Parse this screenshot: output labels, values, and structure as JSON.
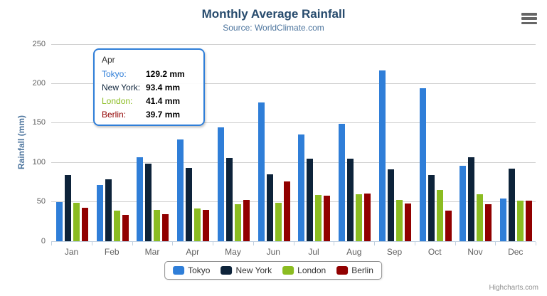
{
  "chart_data": {
    "type": "bar",
    "title": "Monthly Average Rainfall",
    "subtitle": "Source: WorldClimate.com",
    "categories": [
      "Jan",
      "Feb",
      "Mar",
      "Apr",
      "May",
      "Jun",
      "Jul",
      "Aug",
      "Sep",
      "Oct",
      "Nov",
      "Dec"
    ],
    "series": [
      {
        "name": "Tokyo",
        "color": "#2f7ed8",
        "values": [
          49.9,
          71.5,
          106.4,
          129.2,
          144.0,
          176.0,
          135.6,
          148.5,
          216.4,
          194.1,
          95.6,
          54.4
        ]
      },
      {
        "name": "New York",
        "color": "#0d233a",
        "values": [
          83.6,
          78.8,
          98.5,
          93.4,
          106.0,
          84.5,
          105.0,
          104.3,
          91.2,
          83.5,
          106.6,
          92.3
        ]
      },
      {
        "name": "London",
        "color": "#8bbc21",
        "values": [
          48.9,
          38.8,
          39.3,
          41.4,
          47.0,
          48.3,
          59.0,
          59.6,
          52.4,
          65.2,
          59.3,
          51.2
        ]
      },
      {
        "name": "Berlin",
        "color": "#910000",
        "values": [
          42.4,
          33.2,
          34.5,
          39.7,
          52.6,
          75.5,
          57.4,
          60.4,
          47.6,
          39.1,
          46.8,
          51.1
        ]
      }
    ],
    "xlabel": "",
    "ylabel": "Rainfall (mm)",
    "ylim": [
      0,
      250
    ],
    "ytick_step": 50,
    "grid": true,
    "legend_position": "bottom"
  },
  "tooltip": {
    "header": "Apr",
    "rows": [
      {
        "label": "Tokyo:",
        "value": "129.2 mm",
        "color": "#2f7ed8"
      },
      {
        "label": "New York:",
        "value": "93.4 mm",
        "color": "#0d233a"
      },
      {
        "label": "London:",
        "value": "41.4 mm",
        "color": "#8bbc21"
      },
      {
        "label": "Berlin:",
        "value": "39.7 mm",
        "color": "#910000"
      }
    ],
    "border_color": "#2f7ed8"
  },
  "credits": "Highcharts.com",
  "colors": {
    "title": "#274b6d",
    "subtitle": "#4d759e",
    "axis_title": "#4d759e",
    "axis_labels": "#606060",
    "gridline": "#d0d0d0",
    "axis_line": "#c0d0e0",
    "legend_border": "#909090",
    "legend_text": "#333333",
    "credits_text": "#909090",
    "menu_icon": "#666666"
  }
}
